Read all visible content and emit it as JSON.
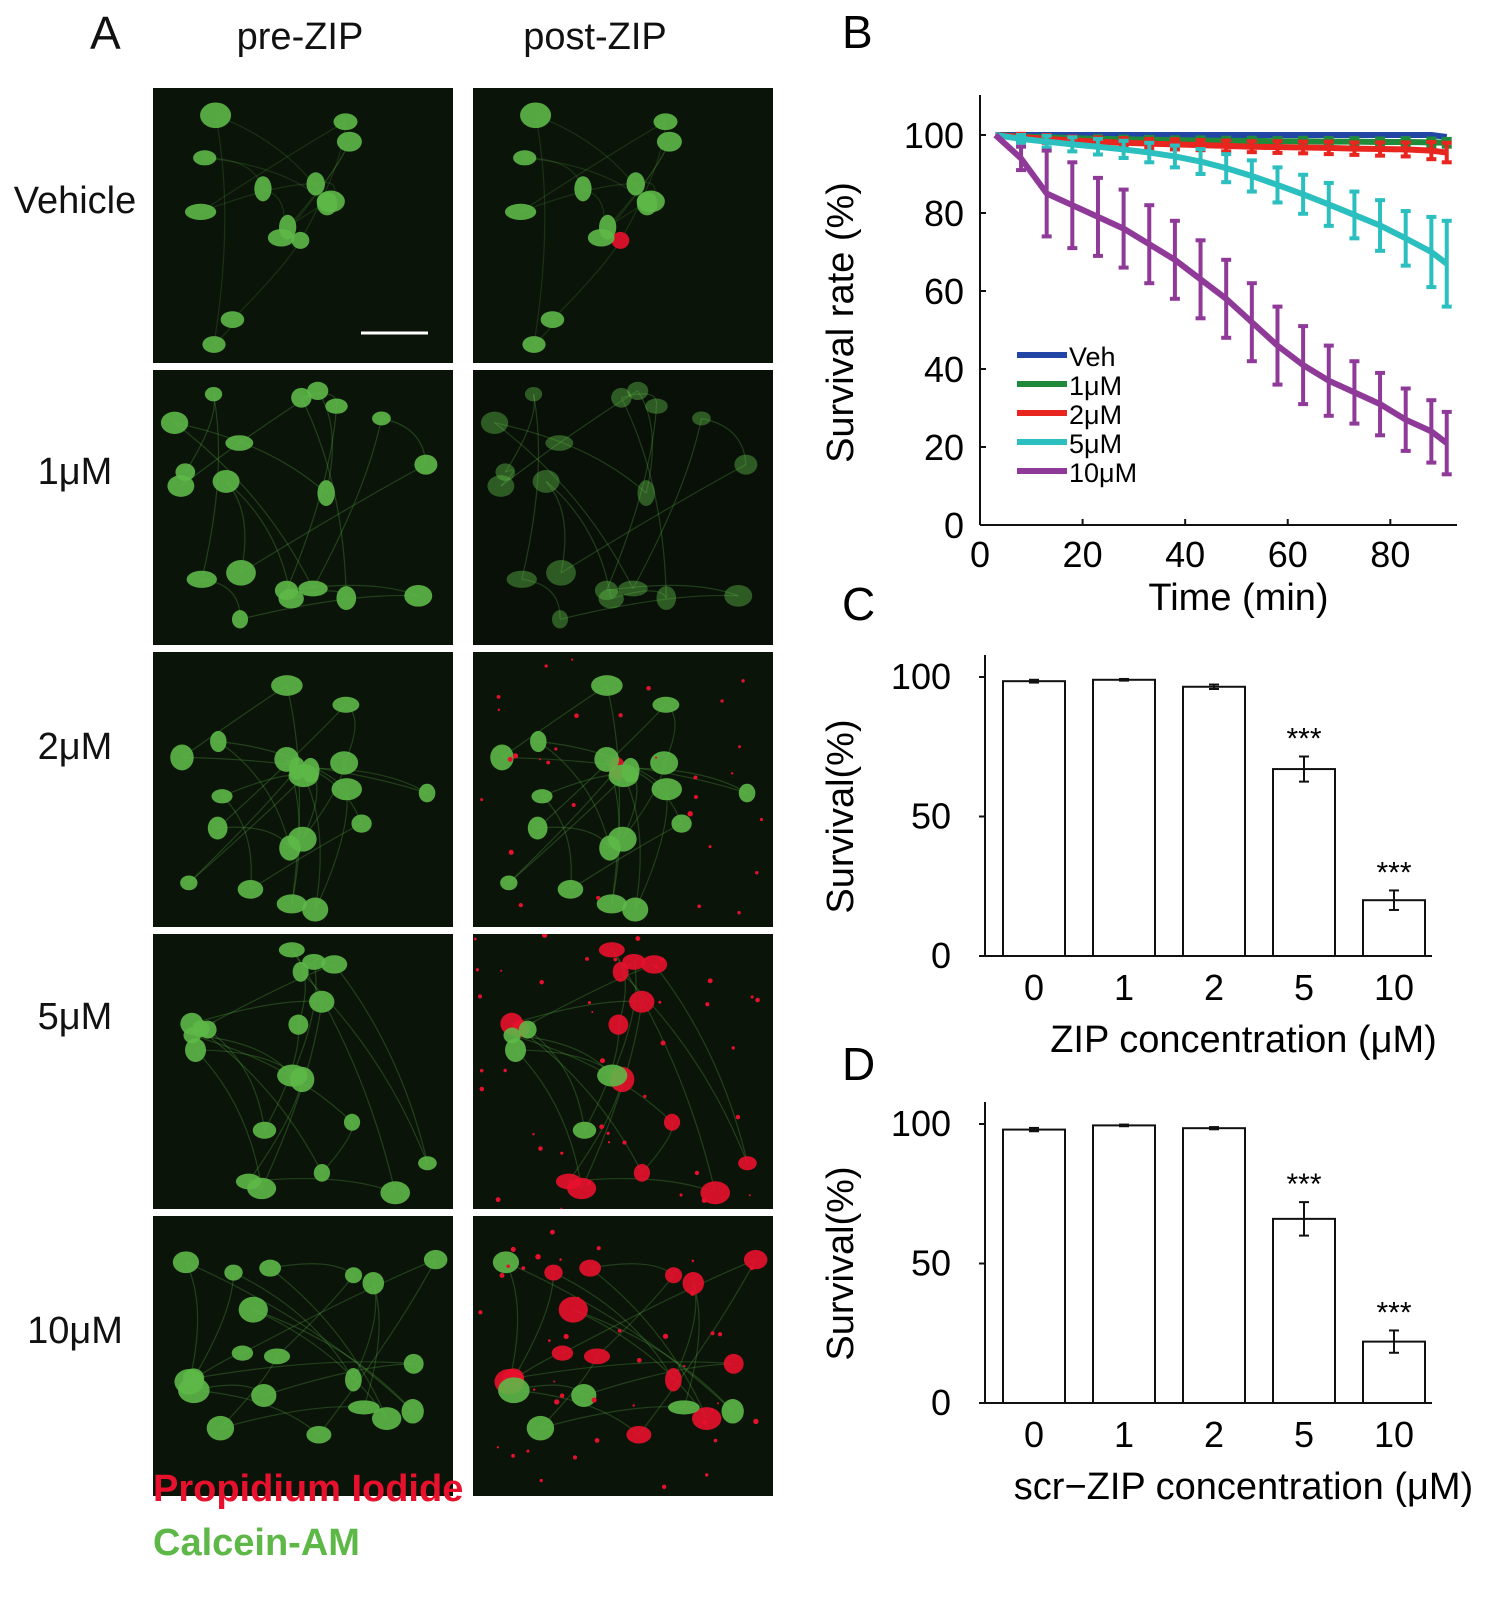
{
  "panel_a": {
    "letter": "A",
    "columns": [
      "pre-ZIP",
      "post-ZIP"
    ],
    "rows": [
      "Vehicle",
      "1μM",
      "2μM",
      "5μM",
      "10μM"
    ],
    "legend": {
      "pi": {
        "label": "Propidium Iodide",
        "color": "#e8112d"
      },
      "calcein": {
        "label": "Calcein-AM",
        "color": "#5db848"
      }
    }
  },
  "chart_data": [
    {
      "panel": "B",
      "type": "line",
      "xlabel": "Time (min)",
      "ylabel": "Survival rate (%)",
      "xlim": [
        0,
        93
      ],
      "ylim": [
        0,
        100
      ],
      "xticks": [
        0,
        20,
        40,
        60,
        80
      ],
      "yticks": [
        0,
        20,
        40,
        60,
        80,
        100
      ],
      "legend_position": "bottom-left",
      "x": [
        3,
        8,
        13,
        18,
        23,
        28,
        33,
        38,
        43,
        48,
        53,
        58,
        63,
        68,
        73,
        78,
        83,
        88,
        91
      ],
      "series": [
        {
          "name": "Veh",
          "color": "#2146a6",
          "values": [
            100,
            100,
            100,
            100,
            100,
            100,
            100,
            100,
            100,
            100,
            100,
            100,
            100,
            100,
            100,
            100,
            100,
            100,
            99.5
          ],
          "errors": [
            0.5,
            0.5,
            0.5,
            0.5,
            0.5,
            0.5,
            0.5,
            0.5,
            0.5,
            0.5,
            0.5,
            0.5,
            0.5,
            0.5,
            0.5,
            0.5,
            0.5,
            0.5,
            0.5
          ]
        },
        {
          "name": "1μM",
          "color": "#1f8a3a",
          "values": [
            100,
            99.6,
            99.4,
            99.2,
            99.0,
            98.9,
            98.8,
            98.7,
            98.6,
            98.5,
            98.5,
            98.4,
            98.4,
            98.3,
            98.3,
            98.2,
            98.2,
            98.1,
            98.0
          ],
          "errors": [
            0.5,
            0.6,
            0.6,
            0.6,
            0.7,
            0.7,
            0.7,
            0.7,
            0.8,
            0.8,
            0.8,
            0.8,
            0.9,
            0.9,
            0.9,
            0.9,
            1.0,
            1.0,
            1.0
          ]
        },
        {
          "name": "2μM",
          "color": "#e8251f",
          "values": [
            100,
            99.5,
            99.0,
            98.6,
            98.3,
            98.0,
            97.8,
            97.6,
            97.4,
            97.2,
            97.0,
            96.9,
            96.8,
            96.7,
            96.5,
            96.4,
            96.3,
            96.0,
            95.5
          ],
          "errors": [
            0.5,
            0.8,
            1.0,
            1.0,
            1.1,
            1.2,
            1.2,
            1.3,
            1.3,
            1.4,
            1.4,
            1.5,
            1.5,
            1.6,
            1.6,
            1.7,
            1.8,
            2.2,
            2.5
          ]
        },
        {
          "name": "5μM",
          "color": "#2bbfbf",
          "values": [
            100,
            99.0,
            98.3,
            97.6,
            97.0,
            96.3,
            95.5,
            94.5,
            93.2,
            91.5,
            89.5,
            87.2,
            84.8,
            82.2,
            79.5,
            76.8,
            73.5,
            70.0,
            67.0
          ],
          "errors": [
            0.5,
            1.0,
            1.5,
            1.8,
            2.0,
            2.2,
            2.5,
            2.8,
            3.2,
            3.6,
            4.0,
            4.5,
            5.0,
            5.5,
            6.0,
            6.5,
            7.0,
            9.0,
            11.0
          ]
        },
        {
          "name": "10μM",
          "color": "#8f3a98",
          "values": [
            100,
            94,
            85,
            82,
            79,
            76,
            72,
            68,
            63,
            58,
            52,
            46,
            41,
            37,
            34,
            31,
            27,
            24,
            21
          ],
          "errors": [
            0.5,
            3,
            11,
            11,
            10,
            10,
            10,
            10,
            10,
            10,
            10,
            10,
            10,
            9,
            8,
            8,
            8,
            8,
            8
          ]
        }
      ]
    },
    {
      "panel": "C",
      "type": "bar",
      "xlabel": "ZIP concentration (μM)",
      "ylabel": "Survival(%)",
      "ylim": [
        0,
        100
      ],
      "yticks": [
        0,
        50,
        100
      ],
      "categories": [
        "0",
        "1",
        "2",
        "5",
        "10"
      ],
      "values": [
        98.5,
        99.0,
        96.5,
        67.0,
        20.0
      ],
      "errors": [
        0.5,
        0.3,
        0.8,
        4.5,
        3.5
      ],
      "annotations": [
        "",
        "",
        "",
        "***",
        "***"
      ]
    },
    {
      "panel": "D",
      "type": "bar",
      "xlabel": "scr−ZIP concentration (μM)",
      "ylabel": "Survival(%)",
      "ylim": [
        0,
        100
      ],
      "yticks": [
        0,
        50,
        100
      ],
      "categories": [
        "0",
        "1",
        "2",
        "5",
        "10"
      ],
      "values": [
        98.0,
        99.5,
        98.5,
        66.0,
        22.0
      ],
      "errors": [
        0.6,
        0.3,
        0.4,
        6.0,
        4.0
      ],
      "annotations": [
        "",
        "",
        "",
        "***",
        "***"
      ]
    }
  ]
}
